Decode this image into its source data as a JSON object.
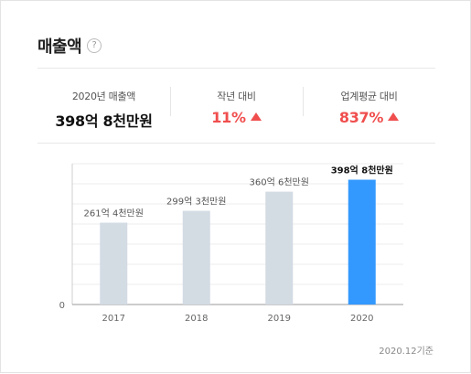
{
  "header": {
    "title": "매출액",
    "help_icon": "?"
  },
  "summary": [
    {
      "label": "2020년 매출액",
      "value": "398억 8천만원",
      "color": "#111111",
      "trend": ""
    },
    {
      "label": "작년 대비",
      "value": "11%",
      "color": "#f04e4e",
      "trend": "up"
    },
    {
      "label": "업계평균 대비",
      "value": "837%",
      "color": "#f04e4e",
      "trend": "up"
    }
  ],
  "chart_data": {
    "type": "bar",
    "categories": [
      "2017",
      "2018",
      "2019",
      "2020"
    ],
    "values": [
      261.4,
      299.3,
      360.6,
      398.8
    ],
    "value_labels": [
      "261억 4천만원",
      "299억 3천만원",
      "360억 6천만원",
      "398억 8천만원"
    ],
    "highlight_index": 3,
    "ytick_labels": [
      "0"
    ],
    "ylim": [
      0,
      450
    ],
    "grid": true,
    "colors": {
      "bar": "#d3dbe3",
      "highlight": "#3399ff",
      "grid": "#ededed"
    }
  },
  "footer": {
    "note": "2020.12기준"
  }
}
